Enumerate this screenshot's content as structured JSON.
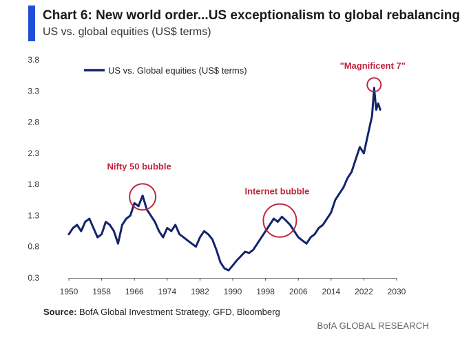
{
  "header": {
    "title": "Chart 6: New world order...US exceptionalism to global rebalancing",
    "subtitle": "US vs. global equities (US$ terms)",
    "accent_color": "#1f4fd8"
  },
  "chart_data": {
    "type": "line",
    "title": "",
    "xlabel": "",
    "ylabel": "",
    "xlim": [
      1950,
      2030
    ],
    "ylim": [
      0.3,
      3.8
    ],
    "x_ticks": [
      "1950",
      "1958",
      "1966",
      "1974",
      "1982",
      "1990",
      "1998",
      "2006",
      "2014",
      "2022",
      "2030"
    ],
    "y_ticks": [
      "0.3",
      "0.8",
      "1.3",
      "1.8",
      "2.3",
      "2.8",
      "3.3",
      "3.8"
    ],
    "grid": false,
    "legend": {
      "position": "top-left",
      "entries": [
        "US vs. Global equities (US$ terms)"
      ]
    },
    "series": [
      {
        "name": "US vs. Global equities (US$ terms)",
        "color": "#14246b",
        "x": [
          1950,
          1951,
          1952,
          1953,
          1954,
          1955,
          1956,
          1957,
          1958,
          1959,
          1960,
          1961,
          1962,
          1963,
          1964,
          1965,
          1966,
          1967,
          1968,
          1969,
          1970,
          1971,
          1972,
          1973,
          1974,
          1975,
          1976,
          1977,
          1978,
          1979,
          1980,
          1981,
          1982,
          1983,
          1984,
          1985,
          1986,
          1987,
          1988,
          1989,
          1990,
          1991,
          1992,
          1993,
          1994,
          1995,
          1996,
          1997,
          1998,
          1999,
          2000,
          2001,
          2002,
          2003,
          2004,
          2005,
          2006,
          2007,
          2008,
          2009,
          2010,
          2011,
          2012,
          2013,
          2014,
          2015,
          2016,
          2017,
          2018,
          2019,
          2020,
          2021,
          2022,
          2023,
          2024,
          2024.5,
          2025,
          2025.5,
          2026
        ],
        "values": [
          1.0,
          1.1,
          1.15,
          1.05,
          1.2,
          1.25,
          1.1,
          0.95,
          1.0,
          1.2,
          1.15,
          1.05,
          0.85,
          1.15,
          1.25,
          1.3,
          1.5,
          1.45,
          1.62,
          1.4,
          1.3,
          1.2,
          1.05,
          0.95,
          1.1,
          1.05,
          1.15,
          1.0,
          0.95,
          0.9,
          0.85,
          0.8,
          0.95,
          1.05,
          1.0,
          0.92,
          0.75,
          0.55,
          0.45,
          0.42,
          0.5,
          0.58,
          0.65,
          0.72,
          0.7,
          0.75,
          0.85,
          0.95,
          1.05,
          1.15,
          1.25,
          1.2,
          1.28,
          1.22,
          1.15,
          1.05,
          0.95,
          0.9,
          0.85,
          0.95,
          1.0,
          1.1,
          1.15,
          1.25,
          1.35,
          1.55,
          1.65,
          1.75,
          1.9,
          2.0,
          2.2,
          2.4,
          2.3,
          2.6,
          2.9,
          3.35,
          3.0,
          3.1,
          3.0
        ]
      }
    ],
    "annotations": [
      {
        "text": "Nifty 50 bubble",
        "x": 1968,
        "y": 1.6,
        "color": "#c0263f"
      },
      {
        "text": "Internet bubble",
        "x": 2001.5,
        "y": 1.22,
        "color": "#c0263f"
      },
      {
        "text": "\"Magnificent 7\"",
        "x": 2024.5,
        "y": 3.4,
        "color": "#c0263f"
      }
    ]
  },
  "source": {
    "label": "Source:",
    "text": " BofA Global Investment Strategy, GFD, Bloomberg"
  },
  "footer": {
    "text": "BofA GLOBAL RESEARCH"
  }
}
